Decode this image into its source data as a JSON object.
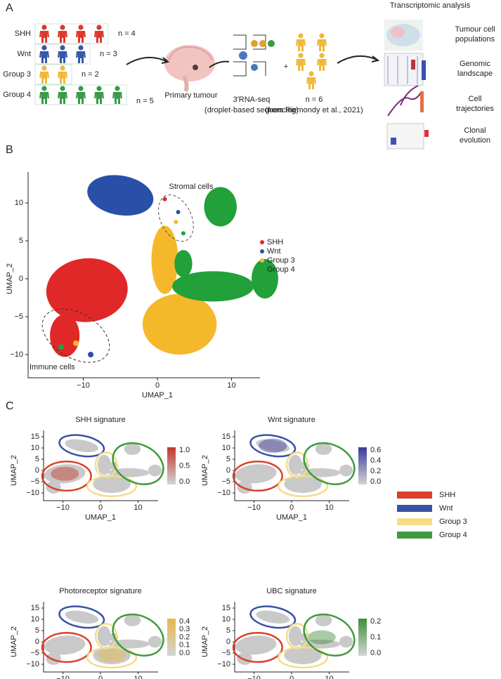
{
  "panel_a": {
    "label": "A",
    "cohorts": [
      {
        "name": "SHH",
        "n_label": "n = 4",
        "patients": 4,
        "color": "#d93a2b"
      },
      {
        "name": "Wnt",
        "n_label": "n = 3",
        "patients": 3,
        "color": "#3558a8"
      },
      {
        "name": "Group 3",
        "n_label": "n = 2",
        "patients": 2,
        "color": "#f0b93a"
      },
      {
        "name": "Group 4",
        "n_label": "n = 5",
        "patients": 5,
        "color": "#3a9a4a"
      }
    ],
    "primary_tumour": "Primary tumour",
    "seq_label": "3′RNA-seq",
    "seq_sub": "(droplet-based sequencing)",
    "plus": "+",
    "external_n": "n = 6",
    "external_source": "(from Riemondy et al., 2021)",
    "analysis_title": "Transcriptomic analysis",
    "analyses": [
      [
        "Tumour cell",
        "populations"
      ],
      [
        "Genomic",
        "landscape"
      ],
      [
        "Cell",
        "trajectories"
      ],
      [
        "Clonal",
        "evolution"
      ]
    ]
  },
  "panel_b": {
    "label": "B",
    "x_label": "UMAP_1",
    "y_label": "UMAP_2",
    "xticks": [
      "−10",
      "0",
      "10"
    ],
    "yticks": [
      "10",
      "5",
      "0",
      "−5",
      "−10"
    ],
    "annotations": [
      "Stromal cells",
      "Immune cells"
    ],
    "legend": [
      {
        "name": "SHH",
        "color": "#e02828"
      },
      {
        "name": "Wnt",
        "color": "#2a4fa8"
      },
      {
        "name": "Group 3",
        "color": "#f5b82a"
      },
      {
        "name": "Group 4",
        "color": "#22a03a"
      }
    ]
  },
  "panel_c": {
    "label": "C",
    "x_label": "UMAP_1",
    "y_label": "UMAP_2",
    "xticks": [
      "−10",
      "0",
      "10"
    ],
    "yticks": [
      "15",
      "10",
      "5",
      "0",
      "−5",
      "−10"
    ],
    "plots": [
      {
        "title": "SHH signature",
        "color": "#c0392b",
        "colorbar_ticks": [
          "1.0",
          "0.5",
          "0.0"
        ]
      },
      {
        "title": "Wnt signature",
        "color": "#3a3a9a",
        "colorbar_ticks": [
          "0.6",
          "0.4",
          "0.2",
          "0.0"
        ]
      },
      {
        "title": "Photoreceptor signature",
        "color": "#e8b84a",
        "colorbar_ticks": [
          "0.4",
          "0.3",
          "0.2",
          "0.1",
          "0.0"
        ]
      },
      {
        "title": "UBC signature",
        "color": "#3f8f3a",
        "colorbar_ticks": [
          "0.2",
          "0.1",
          "0.0"
        ]
      }
    ],
    "legend": [
      {
        "name": "SHH",
        "color": "#d9412b"
      },
      {
        "name": "Wnt",
        "color": "#3653a6"
      },
      {
        "name": "Group 3",
        "color": "#f6dc8a"
      },
      {
        "name": "Group 4",
        "color": "#3e9a3e"
      }
    ]
  }
}
